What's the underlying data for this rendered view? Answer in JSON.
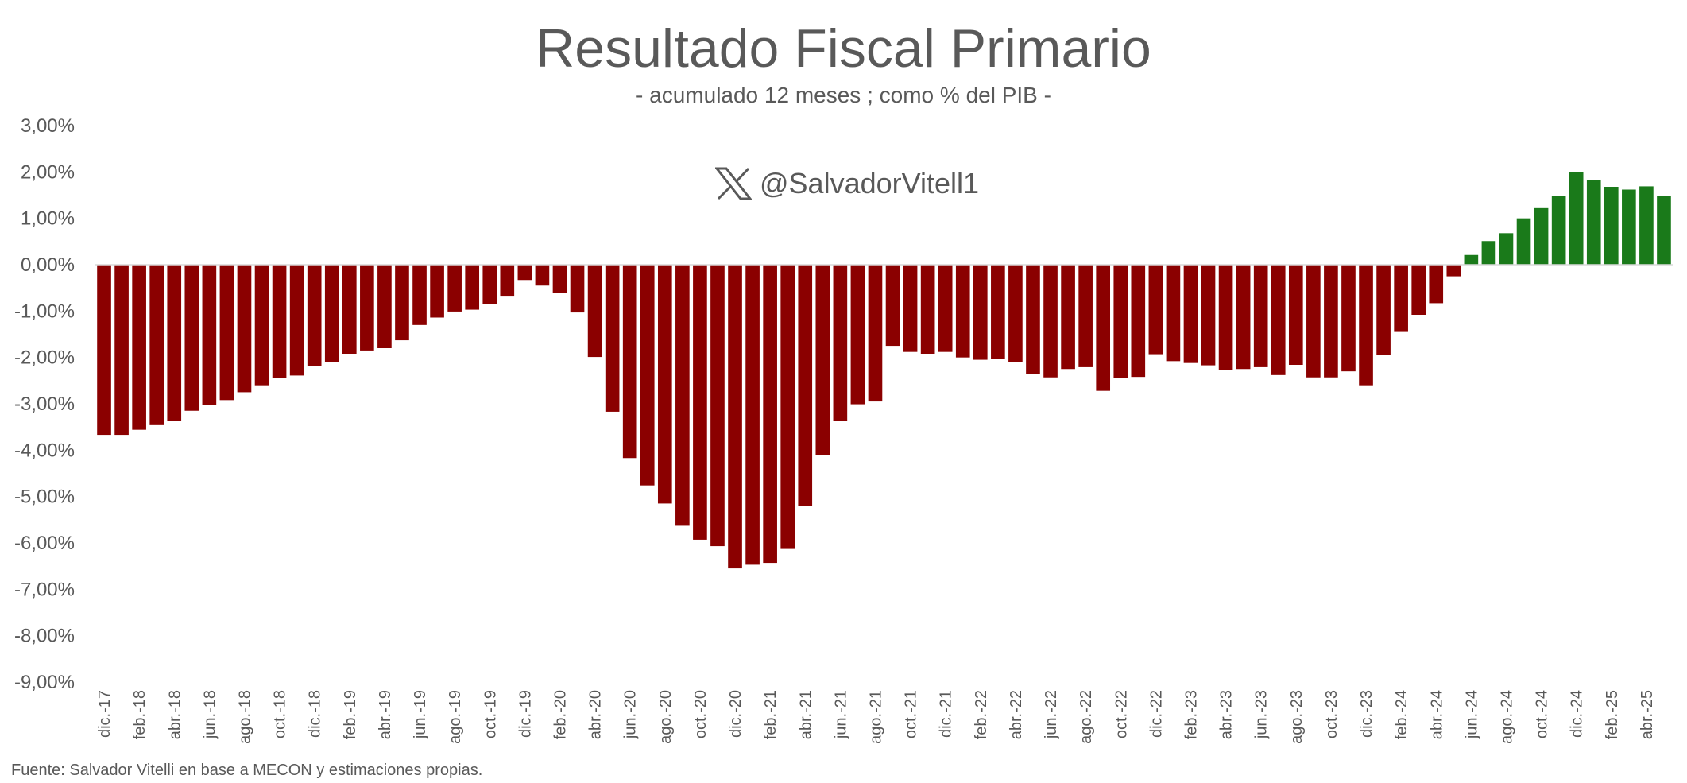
{
  "title": "Resultado Fiscal Primario",
  "subtitle": "- acumulado 12 meses ; como % del PIB -",
  "watermark": {
    "icon": "x-logo-icon",
    "handle": "@SalvadorVitell1"
  },
  "source": "Fuente: Salvador Vitelli en base a MECON y estimaciones propias.",
  "colors": {
    "negative": "#8B0000",
    "positive": "#1A7A1A",
    "axis_text": "#595959"
  },
  "chart_data": {
    "type": "bar",
    "title": "Resultado Fiscal Primario",
    "subtitle": "- acumulado 12 meses ; como % del PIB -",
    "xlabel": "",
    "ylabel": "",
    "ylim": [
      -9,
      3
    ],
    "y_tick_labels": [
      "3,00%",
      "2,00%",
      "1,00%",
      "0,00%",
      "-1,00%",
      "-2,00%",
      "-3,00%",
      "-4,00%",
      "-5,00%",
      "-6,00%",
      "-7,00%",
      "-8,00%",
      "-9,00%"
    ],
    "grid": false,
    "legend": "none",
    "categories": [
      "dic.-17",
      "ene.-18",
      "feb.-18",
      "mar.-18",
      "abr.-18",
      "may.-18",
      "jun.-18",
      "jul.-18",
      "ago.-18",
      "sep.-18",
      "oct.-18",
      "nov.-18",
      "dic.-18",
      "ene.-19",
      "feb.-19",
      "mar.-19",
      "abr.-19",
      "may.-19",
      "jun.-19",
      "jul.-19",
      "ago.-19",
      "sep.-19",
      "oct.-19",
      "nov.-19",
      "dic.-19",
      "ene.-20",
      "feb.-20",
      "mar.-20",
      "abr.-20",
      "may.-20",
      "jun.-20",
      "jul.-20",
      "ago.-20",
      "sep.-20",
      "oct.-20",
      "nov.-20",
      "dic.-20",
      "ene.-21",
      "feb.-21",
      "mar.-21",
      "abr.-21",
      "may.-21",
      "jun.-21",
      "jul.-21",
      "ago.-21",
      "sep.-21",
      "oct.-21",
      "nov.-21",
      "dic.-21",
      "ene.-22",
      "feb.-22",
      "mar.-22",
      "abr.-22",
      "may.-22",
      "jun.-22",
      "jul.-22",
      "ago.-22",
      "sep.-22",
      "oct.-22",
      "nov.-22",
      "dic.-22",
      "ene.-23",
      "feb.-23",
      "mar.-23",
      "abr.-23",
      "may.-23",
      "jun.-23",
      "jul.-23",
      "ago.-23",
      "sep.-23",
      "oct.-23",
      "nov.-23",
      "dic.-23",
      "ene.-24",
      "feb.-24",
      "mar.-24",
      "abr.-24",
      "may.-24",
      "jun.-24",
      "jul.-24",
      "ago.-24",
      "sep.-24",
      "oct.-24",
      "nov.-24",
      "dic.-24",
      "ene.-25",
      "feb.-25",
      "mar.-25",
      "abr.-25",
      "may.-25"
    ],
    "visible_x_labels": [
      "dic.-17",
      "feb.-18",
      "abr.-18",
      "jun.-18",
      "ago.-18",
      "oct.-18",
      "dic.-18",
      "feb.-19",
      "abr.-19",
      "jun.-19",
      "ago.-19",
      "oct.-19",
      "dic.-19",
      "feb.-20",
      "abr.-20",
      "jun.-20",
      "ago.-20",
      "oct.-20",
      "dic.-20",
      "feb.-21",
      "abr.-21",
      "jun.-21",
      "ago.-21",
      "oct.-21",
      "dic.-21",
      "feb.-22",
      "abr.-22",
      "jun.-22",
      "ago.-22",
      "oct.-22",
      "dic.-22",
      "feb.-23",
      "abr.-23",
      "jun.-23",
      "ago.-23",
      "oct.-23",
      "dic.-23",
      "feb.-24",
      "abr.-24",
      "jun.-24",
      "ago.-24",
      "oct.-24",
      "dic.-24",
      "feb.-25",
      "abr.-25"
    ],
    "values": [
      -3.67,
      -3.67,
      -3.56,
      -3.46,
      -3.36,
      -3.15,
      -3.02,
      -2.92,
      -2.75,
      -2.6,
      -2.45,
      -2.39,
      -2.18,
      -2.1,
      -1.92,
      -1.85,
      -1.8,
      -1.63,
      -1.3,
      -1.14,
      -1.01,
      -0.97,
      -0.85,
      -0.67,
      -0.33,
      -0.45,
      -0.6,
      -1.03,
      -1.99,
      -3.17,
      -4.17,
      -4.76,
      -5.15,
      -5.63,
      -5.93,
      -6.07,
      -6.55,
      -6.47,
      -6.43,
      -6.13,
      -5.2,
      -4.1,
      -3.36,
      -3.01,
      -2.95,
      -1.75,
      -1.88,
      -1.92,
      -1.88,
      -2.0,
      -2.05,
      -2.03,
      -2.1,
      -2.36,
      -2.43,
      -2.25,
      -2.21,
      -2.72,
      -2.45,
      -2.42,
      -1.93,
      -2.08,
      -2.12,
      -2.17,
      -2.28,
      -2.25,
      -2.21,
      -2.38,
      -2.16,
      -2.43,
      -2.43,
      -2.3,
      -2.6,
      -1.95,
      -1.45,
      -1.08,
      -0.83,
      -0.25,
      0.21,
      0.51,
      0.68,
      1.0,
      1.22,
      1.48,
      1.99,
      1.82,
      1.68,
      1.62,
      1.69,
      1.48
    ]
  }
}
